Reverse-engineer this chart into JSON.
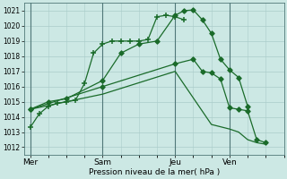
{
  "background_color": "#cce8e4",
  "grid_color": "#aaccca",
  "line_color": "#1a6b2a",
  "xlabel": "Pression niveau de la mer( hPa )",
  "ylim": [
    1011.5,
    1021.5
  ],
  "yticks": [
    1012,
    1013,
    1014,
    1015,
    1016,
    1017,
    1018,
    1019,
    1020,
    1021
  ],
  "day_labels": [
    "Mer",
    "Sam",
    "Jeu",
    "Ven"
  ],
  "day_positions": [
    0,
    24,
    48,
    66
  ],
  "xlim": [
    -2,
    84
  ],
  "series1_plus": {
    "x": [
      0,
      3,
      6,
      9,
      12,
      15,
      18,
      21,
      24,
      27,
      30,
      33,
      36,
      39,
      42,
      45,
      48,
      51
    ],
    "y": [
      1013.3,
      1014.2,
      1014.7,
      1014.9,
      1015.0,
      1015.1,
      1016.2,
      1018.2,
      1018.8,
      1019.0,
      1019.0,
      1019.0,
      1019.0,
      1019.1,
      1020.6,
      1020.7,
      1020.6,
      1020.4
    ]
  },
  "series2_diamond": {
    "x": [
      0,
      6,
      12,
      24,
      30,
      36,
      42,
      48,
      51,
      54,
      57,
      60,
      63,
      66,
      69,
      72
    ],
    "y": [
      1014.5,
      1015.0,
      1015.2,
      1016.4,
      1018.2,
      1018.8,
      1019.0,
      1020.7,
      1021.0,
      1021.05,
      1020.4,
      1019.5,
      1017.8,
      1017.1,
      1016.6,
      1014.7
    ]
  },
  "series3_line": {
    "x": [
      0,
      24,
      48,
      54,
      57,
      60,
      63,
      66,
      69,
      72,
      75,
      78
    ],
    "y": [
      1014.5,
      1016.0,
      1017.5,
      1017.8,
      1017.0,
      1016.9,
      1016.5,
      1014.6,
      1014.5,
      1014.4,
      1012.5,
      1012.3
    ]
  },
  "series4_line": {
    "x": [
      0,
      24,
      48,
      60,
      66,
      69,
      72,
      75,
      78
    ],
    "y": [
      1014.5,
      1015.5,
      1017.0,
      1013.5,
      1013.2,
      1013.0,
      1012.5,
      1012.3,
      1012.2
    ]
  }
}
